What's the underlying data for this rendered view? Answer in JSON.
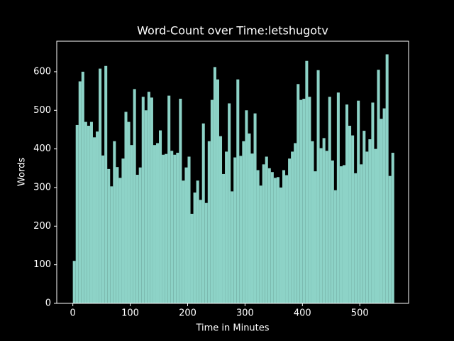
{
  "chart_data": {
    "type": "histogram",
    "title": "Word-Count over Time:letshugotv",
    "xlabel": "Time in Minutes",
    "ylabel": "Words",
    "color": "#8dd3c7",
    "bins": [
      0,
      5,
      10,
      15,
      20,
      25,
      30,
      35,
      40,
      45,
      50,
      55,
      60,
      65,
      70,
      75,
      80,
      85,
      90,
      95,
      100,
      105,
      110,
      115,
      120,
      125,
      130,
      135,
      140,
      145,
      150,
      155,
      160,
      165,
      170,
      175,
      180,
      185,
      190,
      195,
      200,
      205,
      210,
      215,
      220,
      225,
      230,
      235,
      240,
      245,
      250,
      255,
      260,
      265,
      270,
      275,
      280,
      285,
      290,
      295,
      300,
      305,
      310,
      315,
      320,
      325,
      330,
      335,
      340,
      345,
      350,
      355,
      360,
      365,
      370,
      375,
      380,
      385,
      390,
      395,
      400,
      405,
      410,
      415,
      420,
      425,
      430,
      435,
      440,
      445,
      450,
      455,
      460,
      465,
      470,
      475,
      480,
      485,
      490,
      495,
      500,
      505,
      510,
      515,
      520,
      525,
      530,
      535,
      540,
      545,
      550,
      555,
      560
    ],
    "counts": [
      110,
      462,
      575,
      600,
      470,
      460,
      470,
      430,
      445,
      608,
      383,
      615,
      348,
      303,
      420,
      353,
      325,
      375,
      496,
      470,
      410,
      555,
      333,
      352,
      535,
      500,
      548,
      533,
      410,
      415,
      448,
      385,
      387,
      538,
      395,
      385,
      390,
      530,
      318,
      352,
      380,
      232,
      287,
      318,
      268,
      466,
      260,
      420,
      527,
      612,
      580,
      433,
      335,
      393,
      518,
      290,
      378,
      580,
      382,
      420,
      500,
      440,
      388,
      492,
      345,
      305,
      360,
      380,
      350,
      340,
      325,
      327,
      300,
      345,
      332,
      375,
      393,
      415,
      568,
      527,
      530,
      628,
      535,
      420,
      342,
      604,
      402,
      428,
      395,
      535,
      370,
      293,
      546,
      355,
      358,
      515,
      460,
      435,
      337,
      525,
      360,
      447,
      393,
      425,
      520,
      400,
      605,
      478,
      505,
      645,
      330,
      390
    ],
    "xlim": [
      -28,
      585
    ],
    "ylim": [
      0,
      679
    ],
    "xticks": [
      0,
      100,
      200,
      300,
      400,
      500
    ],
    "yticks": [
      0,
      100,
      200,
      300,
      400,
      500,
      600
    ]
  }
}
